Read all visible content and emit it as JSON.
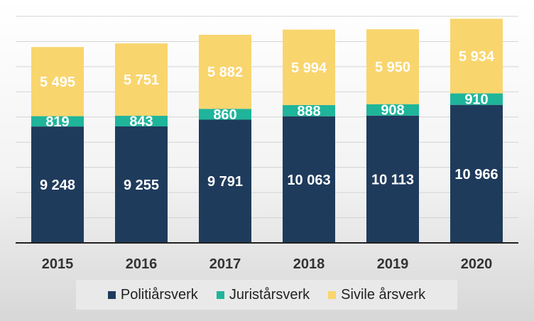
{
  "chart_data": {
    "type": "bar",
    "stacked": true,
    "categories": [
      "2015",
      "2016",
      "2017",
      "2018",
      "2019",
      "2020"
    ],
    "series": [
      {
        "name": "Politiårsverk",
        "color": "#1f3b5c",
        "values": [
          9248,
          9255,
          9791,
          10063,
          10113,
          10966
        ],
        "labels": [
          "9 248",
          "9 255",
          "9 791",
          "10 063",
          "10 113",
          "10 966"
        ]
      },
      {
        "name": "Juristårsverk",
        "color": "#1fb59a",
        "values": [
          819,
          843,
          860,
          888,
          908,
          910
        ],
        "labels": [
          "819",
          "843",
          "860",
          "888",
          "908",
          "910"
        ]
      },
      {
        "name": "Sivile årsverk",
        "color": "#f9d56e",
        "values": [
          5495,
          5751,
          5882,
          5994,
          5950,
          5934
        ],
        "labels": [
          "5 495",
          "5 751",
          "5 882",
          "5 994",
          "5 950",
          "5 934"
        ]
      }
    ],
    "ylim": [
      0,
      18000
    ],
    "grid": true,
    "legend_position": "bottom"
  }
}
